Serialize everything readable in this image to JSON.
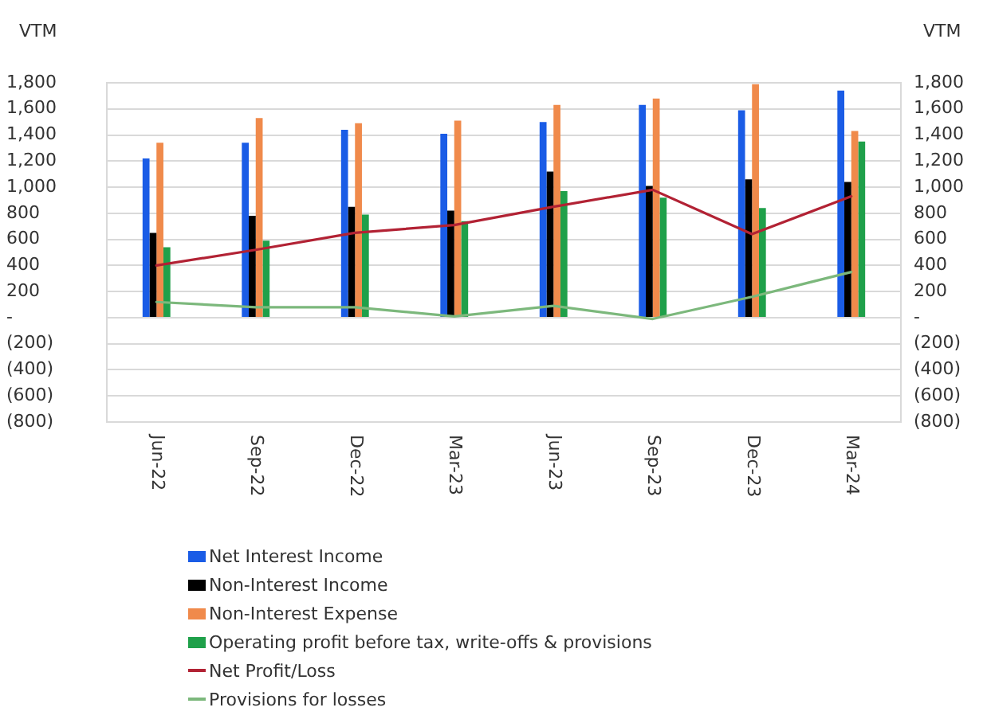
{
  "chart_data": {
    "type": "bar",
    "ylabel": "VTM",
    "y2label": "VTM",
    "categories": [
      "Jun-22",
      "Sep-22",
      "Dec-22",
      "Mar-23",
      "Jun-23",
      "Sep-23",
      "Dec-23",
      "Mar-24"
    ],
    "series": [
      {
        "name": "Net Interest Income",
        "color": "#1a5ce6",
        "values": [
          1220,
          1340,
          1440,
          1410,
          1500,
          1630,
          1590,
          1740
        ]
      },
      {
        "name": "Non-Interest Income",
        "color": "#000000",
        "values": [
          650,
          780,
          850,
          820,
          1120,
          1010,
          1060,
          1040
        ]
      },
      {
        "name": "Non-Interest Expense",
        "color": "#f08a4b",
        "values": [
          1340,
          1530,
          1490,
          1510,
          1630,
          1680,
          1790,
          1430
        ]
      },
      {
        "name": "Operating profit before tax, write-offs & provisions",
        "color": "#1fa04a",
        "values": [
          540,
          590,
          790,
          740,
          970,
          920,
          840,
          1350
        ]
      },
      {
        "name": "Net Profit/Loss",
        "type": "line",
        "color": "#b22234",
        "values": [
          400,
          520,
          650,
          710,
          850,
          980,
          640,
          930
        ]
      },
      {
        "name": "Provisions for losses",
        "type": "line",
        "color": "#7cb87c",
        "values": [
          120,
          80,
          80,
          10,
          90,
          -10,
          160,
          350
        ]
      }
    ],
    "ylim": [
      -800,
      1800
    ],
    "yticks": [
      {
        "value": 1800,
        "label": "1,800"
      },
      {
        "value": 1600,
        "label": "1,600"
      },
      {
        "value": 1400,
        "label": "1,400"
      },
      {
        "value": 1200,
        "label": "1,200"
      },
      {
        "value": 1000,
        "label": "1,000"
      },
      800,
      600,
      400,
      200,
      {
        "value": 0,
        "label": "-"
      },
      {
        "value": -200,
        "label": "(200)"
      },
      {
        "value": -400,
        "label": "(400)"
      },
      {
        "value": -600,
        "label": "(600)"
      },
      {
        "value": -800,
        "label": "(800)"
      }
    ],
    "y2lim": [
      -800,
      1800
    ],
    "y2ticks": [
      {
        "value": 1800,
        "label": "1,800"
      },
      {
        "value": 1600,
        "label": "1,600"
      },
      {
        "value": 1400,
        "label": "1,400"
      },
      {
        "value": 1200,
        "label": "1,200"
      },
      {
        "value": 1000,
        "label": "1,000"
      },
      800,
      600,
      400,
      200,
      {
        "value": 0,
        "label": "-"
      },
      {
        "value": -200,
        "label": "(200)"
      },
      {
        "value": -400,
        "label": "(400)"
      },
      {
        "value": -600,
        "label": "(600)"
      },
      {
        "value": -800,
        "label": "(800)"
      }
    ],
    "grid": "y",
    "legend": "bottom",
    "line_style": "solid"
  }
}
